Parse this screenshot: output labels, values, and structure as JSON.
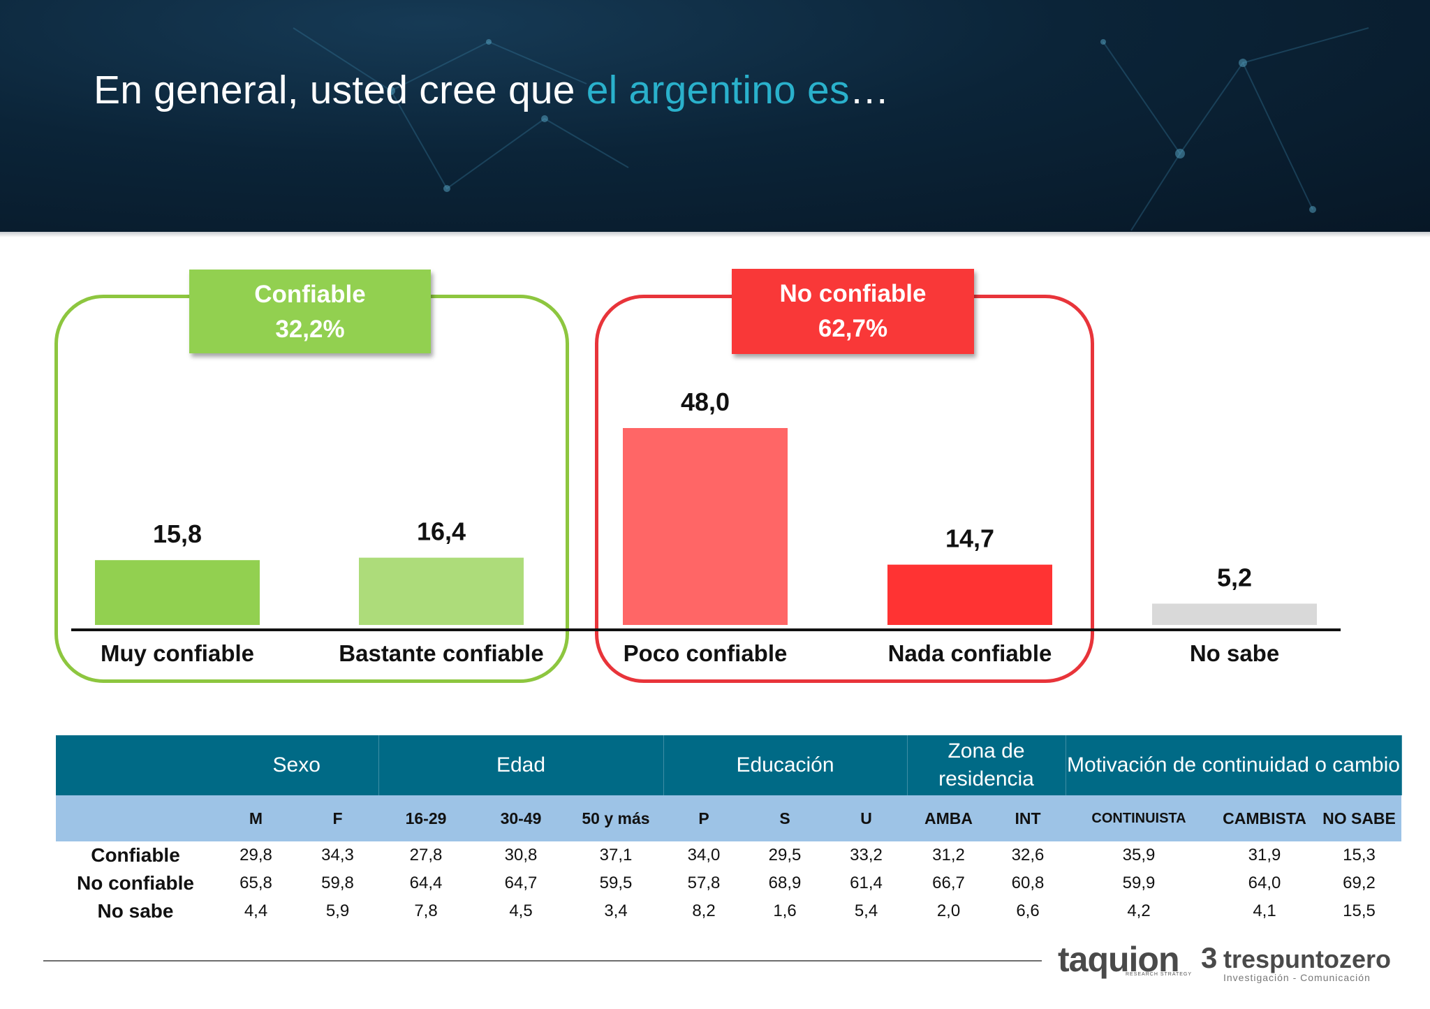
{
  "title": {
    "main": "En general, usted cree que ",
    "accent": "el argentino es",
    "tail": "…"
  },
  "groups": [
    {
      "label": "Confiable",
      "value": "32,2%",
      "color": "#92d050"
    },
    {
      "label": "No confiable",
      "value": "62,7%",
      "color": "#f93838"
    }
  ],
  "chart_data": {
    "type": "bar",
    "categories": [
      "Muy confiable",
      "Bastante confiable",
      "Poco confiable",
      "Nada confiable",
      "No sabe"
    ],
    "values": [
      15.8,
      16.4,
      48.0,
      14.7,
      5.2
    ],
    "value_labels": [
      "15,8",
      "16,4",
      "48,0",
      "14,7",
      "5,2"
    ],
    "colors": [
      "#92d050",
      "#addc7a",
      "#ff6666",
      "#ff3333",
      "#d9d9d9"
    ],
    "title": "",
    "xlabel": "",
    "ylabel": "",
    "ylim": [
      0,
      60
    ],
    "grid": false
  },
  "table": {
    "groups": [
      {
        "label": "Sexo",
        "span": 2
      },
      {
        "label": "Edad",
        "span": 3
      },
      {
        "label": "Educación",
        "span": 3
      },
      {
        "label": "Zona de residencia",
        "span": 2
      },
      {
        "label": "Motivación de continuidad o cambio",
        "span": 3
      }
    ],
    "columns": [
      "M",
      "F",
      "16-29",
      "30-49",
      "50 y más",
      "P",
      "S",
      "U",
      "AMBA",
      "INT",
      "CONTINUISTA",
      "CAMBISTA",
      "NO SABE"
    ],
    "rows": [
      {
        "label": "Confiable",
        "values": [
          "29,8",
          "34,3",
          "27,8",
          "30,8",
          "37,1",
          "34,0",
          "29,5",
          "33,2",
          "31,2",
          "32,6",
          "35,9",
          "31,9",
          "15,3"
        ]
      },
      {
        "label": "No confiable",
        "values": [
          "65,8",
          "59,8",
          "64,4",
          "64,7",
          "59,5",
          "57,8",
          "68,9",
          "61,4",
          "66,7",
          "60,8",
          "59,9",
          "64,0",
          "69,2"
        ]
      },
      {
        "label": "No sabe",
        "values": [
          "4,4",
          "5,9",
          "7,8",
          "4,5",
          "3,4",
          "8,2",
          "1,6",
          "5,4",
          "2,0",
          "6,6",
          "4,2",
          "4,1",
          "15,5"
        ]
      }
    ]
  },
  "logos": {
    "taquion": "taquion",
    "taquion_sub": "RESEARCH STRATEGY",
    "tres_mark": "3",
    "tres": "trespuntozero",
    "tres_sub": "Investigación - Comunicación"
  }
}
